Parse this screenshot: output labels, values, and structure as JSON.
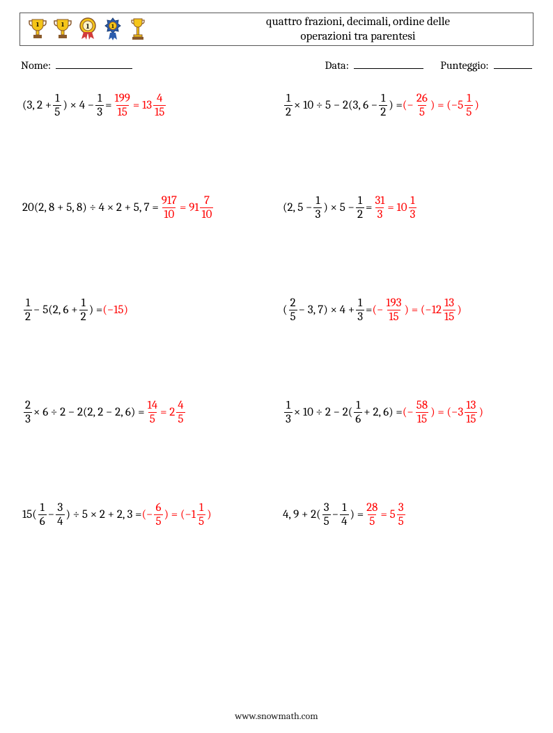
{
  "colors": {
    "text": "#000000",
    "answer": "#ff0000",
    "border": "#555555",
    "background": "#ffffff",
    "gold": "#f5c518",
    "silver": "#c0c0c0",
    "ribbon_blue": "#2b5dad",
    "ribbon_red": "#d23b3b",
    "brown": "#8a5a2b"
  },
  "header": {
    "title_line1": "quattro frazioni, decimali, ordine delle",
    "title_line2": "operazioni tra parentesi"
  },
  "info": {
    "name_label": "Nome:",
    "date_label": "Data:",
    "score_label": "Punteggio:"
  },
  "footer": "www.snowmath.com",
  "icons": [
    {
      "kind": "trophy-cup",
      "label": "1"
    },
    {
      "kind": "trophy-cup",
      "label": "1"
    },
    {
      "kind": "medal-round",
      "label": "1"
    },
    {
      "kind": "medal-ribbon",
      "label": "1"
    },
    {
      "kind": "trophy-tall",
      "label": ""
    }
  ],
  "problems": [
    {
      "expr": [
        {
          "t": "txt",
          "v": "(3, 2 + "
        },
        {
          "t": "frac",
          "n": "1",
          "d": "5"
        },
        {
          "t": "txt",
          "v": ") × 4 − "
        },
        {
          "t": "frac",
          "n": "1",
          "d": "3"
        },
        {
          "t": "txt",
          "v": " = "
        }
      ],
      "ans": [
        {
          "t": "frac",
          "n": "199",
          "d": "15"
        },
        {
          "t": "txt",
          "v": " = 13"
        },
        {
          "t": "frac",
          "n": "4",
          "d": "15"
        }
      ]
    },
    {
      "expr": [
        {
          "t": "frac",
          "n": "1",
          "d": "2"
        },
        {
          "t": "txt",
          "v": " × 10 ÷ 5 − 2(3, 6 − "
        },
        {
          "t": "frac",
          "n": "1",
          "d": "2"
        },
        {
          "t": "txt",
          "v": ") = "
        }
      ],
      "ans": [
        {
          "t": "txt",
          "v": "(−"
        },
        {
          "t": "frac",
          "n": "26",
          "d": "5"
        },
        {
          "t": "txt",
          "v": ") = (−5"
        },
        {
          "t": "frac",
          "n": "1",
          "d": "5"
        },
        {
          "t": "txt",
          "v": ")"
        }
      ]
    },
    {
      "expr": [
        {
          "t": "txt",
          "v": "20(2, 8 + 5, 8) ÷ 4 × 2 + 5, 7 = "
        }
      ],
      "ans": [
        {
          "t": "frac",
          "n": "917",
          "d": "10"
        },
        {
          "t": "txt",
          "v": " = 91"
        },
        {
          "t": "frac",
          "n": "7",
          "d": "10"
        }
      ]
    },
    {
      "expr": [
        {
          "t": "txt",
          "v": "(2, 5 − "
        },
        {
          "t": "frac",
          "n": "1",
          "d": "3"
        },
        {
          "t": "txt",
          "v": ") × 5 − "
        },
        {
          "t": "frac",
          "n": "1",
          "d": "2"
        },
        {
          "t": "txt",
          "v": " = "
        }
      ],
      "ans": [
        {
          "t": "frac",
          "n": "31",
          "d": "3"
        },
        {
          "t": "txt",
          "v": " = 10"
        },
        {
          "t": "frac",
          "n": "1",
          "d": "3"
        }
      ]
    },
    {
      "expr": [
        {
          "t": "frac",
          "n": "1",
          "d": "2"
        },
        {
          "t": "txt",
          "v": " − 5(2, 6 + "
        },
        {
          "t": "frac",
          "n": "1",
          "d": "2"
        },
        {
          "t": "txt",
          "v": ") = "
        }
      ],
      "ans": [
        {
          "t": "txt",
          "v": "(−15)"
        }
      ]
    },
    {
      "expr": [
        {
          "t": "txt",
          "v": "("
        },
        {
          "t": "frac",
          "n": "2",
          "d": "5"
        },
        {
          "t": "txt",
          "v": " − 3, 7) × 4 + "
        },
        {
          "t": "frac",
          "n": "1",
          "d": "3"
        },
        {
          "t": "txt",
          "v": " = "
        }
      ],
      "ans": [
        {
          "t": "txt",
          "v": "(−"
        },
        {
          "t": "frac",
          "n": "193",
          "d": "15"
        },
        {
          "t": "txt",
          "v": ") = (−12"
        },
        {
          "t": "frac",
          "n": "13",
          "d": "15"
        },
        {
          "t": "txt",
          "v": ")"
        }
      ]
    },
    {
      "expr": [
        {
          "t": "frac",
          "n": "2",
          "d": "3"
        },
        {
          "t": "txt",
          "v": " × 6 ÷ 2 − 2(2, 2 − 2, 6) = "
        }
      ],
      "ans": [
        {
          "t": "frac",
          "n": "14",
          "d": "5"
        },
        {
          "t": "txt",
          "v": " = 2"
        },
        {
          "t": "frac",
          "n": "4",
          "d": "5"
        }
      ]
    },
    {
      "expr": [
        {
          "t": "frac",
          "n": "1",
          "d": "3"
        },
        {
          "t": "txt",
          "v": " × 10 ÷ 2 − 2("
        },
        {
          "t": "frac",
          "n": "1",
          "d": "6"
        },
        {
          "t": "txt",
          "v": " + 2, 6) = "
        }
      ],
      "ans": [
        {
          "t": "txt",
          "v": "(−"
        },
        {
          "t": "frac",
          "n": "58",
          "d": "15"
        },
        {
          "t": "txt",
          "v": ") = (−3"
        },
        {
          "t": "frac",
          "n": "13",
          "d": "15"
        },
        {
          "t": "txt",
          "v": ")"
        }
      ]
    },
    {
      "expr": [
        {
          "t": "txt",
          "v": "15("
        },
        {
          "t": "frac",
          "n": "1",
          "d": "6"
        },
        {
          "t": "txt",
          "v": " − "
        },
        {
          "t": "frac",
          "n": "3",
          "d": "4"
        },
        {
          "t": "txt",
          "v": ") ÷ 5 × 2 + 2, 3 = "
        }
      ],
      "ans": [
        {
          "t": "txt",
          "v": "(−"
        },
        {
          "t": "frac",
          "n": "6",
          "d": "5"
        },
        {
          "t": "txt",
          "v": ") = (−1"
        },
        {
          "t": "frac",
          "n": "1",
          "d": "5"
        },
        {
          "t": "txt",
          "v": ")"
        }
      ]
    },
    {
      "expr": [
        {
          "t": "txt",
          "v": "4, 9 + 2("
        },
        {
          "t": "frac",
          "n": "3",
          "d": "5"
        },
        {
          "t": "txt",
          "v": " − "
        },
        {
          "t": "frac",
          "n": "1",
          "d": "4"
        },
        {
          "t": "txt",
          "v": ") = "
        }
      ],
      "ans": [
        {
          "t": "frac",
          "n": "28",
          "d": "5"
        },
        {
          "t": "txt",
          "v": " = 5"
        },
        {
          "t": "frac",
          "n": "3",
          "d": "5"
        }
      ]
    }
  ]
}
